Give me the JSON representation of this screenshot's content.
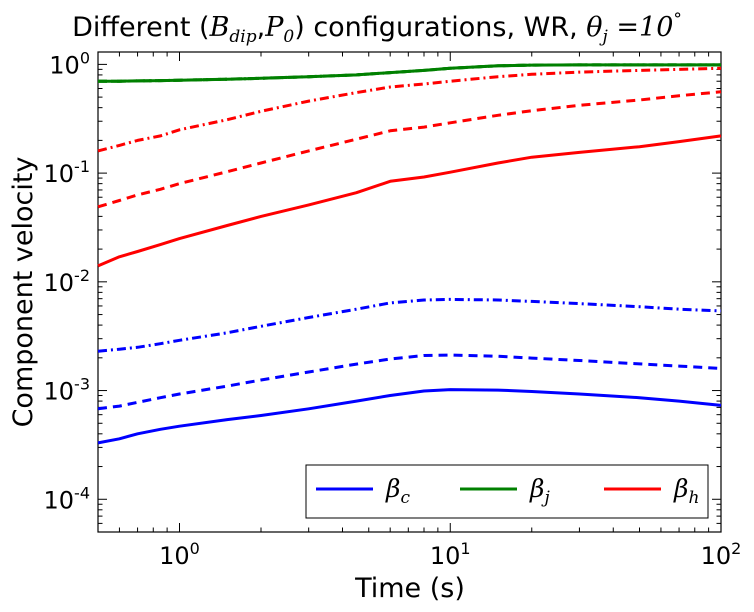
{
  "chart_data": {
    "type": "line",
    "title": {
      "prefix": "Different (",
      "b_sym": "B",
      "b_sub": "dip",
      "comma": ",",
      "p_sym": "P",
      "p_sub": "0",
      "suffix": ") configurations, WR, ",
      "theta": "θ",
      "theta_sub": "j",
      "eq": " =10",
      "deg": "°"
    },
    "xlabel": "Time (s)",
    "ylabel": "Component velocity",
    "xscale": "log",
    "yscale": "log",
    "xlim": [
      0.5,
      100
    ],
    "ylim": [
      5e-05,
      1.3
    ],
    "x_ticks": [
      {
        "value": 1,
        "base": "10",
        "exp": "0"
      },
      {
        "value": 10,
        "base": "10",
        "exp": "1"
      },
      {
        "value": 100,
        "base": "10",
        "exp": "2"
      }
    ],
    "y_ticks": [
      {
        "value": 0.0001,
        "base": "10",
        "exp": "-4"
      },
      {
        "value": 0.001,
        "base": "10",
        "exp": "-3"
      },
      {
        "value": 0.01,
        "base": "10",
        "exp": "-2"
      },
      {
        "value": 0.1,
        "base": "10",
        "exp": "-1"
      },
      {
        "value": 1,
        "base": "10",
        "exp": "0"
      }
    ],
    "x": [
      0.5,
      0.6,
      0.7,
      0.85,
      1,
      1.5,
      2,
      3,
      4.5,
      6,
      8,
      10,
      15,
      20,
      30,
      50,
      70,
      100
    ],
    "series": [
      {
        "name": "β_c solid",
        "group": "beta_c",
        "style": "solid",
        "color": "#0000ff",
        "values": [
          0.00033,
          0.00036,
          0.0004,
          0.00044,
          0.00047,
          0.00054,
          0.00059,
          0.00068,
          0.0008,
          0.0009,
          0.00099,
          0.00102,
          0.00101,
          0.00098,
          0.00093,
          0.00086,
          0.0008,
          0.00073
        ]
      },
      {
        "name": "β_c dashed",
        "group": "beta_c",
        "style": "dashed",
        "color": "#0000ff",
        "values": [
          0.00068,
          0.00072,
          0.00078,
          0.00086,
          0.00093,
          0.0011,
          0.00125,
          0.00148,
          0.00175,
          0.00195,
          0.0021,
          0.00212,
          0.00207,
          0.00199,
          0.00189,
          0.00176,
          0.00168,
          0.0016
        ]
      },
      {
        "name": "β_c dashdot",
        "group": "beta_c",
        "style": "dashdot",
        "color": "#0000ff",
        "values": [
          0.0023,
          0.0024,
          0.0025,
          0.0027,
          0.0029,
          0.0034,
          0.0039,
          0.0047,
          0.0056,
          0.0064,
          0.0068,
          0.0069,
          0.0068,
          0.0066,
          0.0063,
          0.0059,
          0.0056,
          0.0054
        ]
      },
      {
        "name": "β_j solid",
        "group": "beta_j",
        "style": "solid",
        "color": "#008000",
        "values": [
          0.7,
          0.7,
          0.705,
          0.71,
          0.715,
          0.73,
          0.745,
          0.77,
          0.8,
          0.84,
          0.88,
          0.92,
          0.97,
          0.985,
          0.99,
          0.99,
          0.99,
          0.99
        ]
      },
      {
        "name": "β_j dashed",
        "group": "beta_j",
        "style": "dashed",
        "color": "#008000",
        "values": [
          0.7,
          0.7,
          0.705,
          0.71,
          0.715,
          0.73,
          0.745,
          0.77,
          0.8,
          0.84,
          0.88,
          0.92,
          0.97,
          0.985,
          0.99,
          0.99,
          0.99,
          0.99
        ]
      },
      {
        "name": "β_j dashdot",
        "group": "beta_j",
        "style": "dashdot",
        "color": "#008000",
        "values": [
          0.7,
          0.7,
          0.705,
          0.71,
          0.715,
          0.73,
          0.745,
          0.77,
          0.8,
          0.84,
          0.88,
          0.92,
          0.97,
          0.985,
          0.99,
          0.99,
          0.99,
          0.99
        ]
      },
      {
        "name": "β_h solid",
        "group": "beta_h",
        "style": "solid",
        "color": "#ff0000",
        "values": [
          0.014,
          0.017,
          0.019,
          0.022,
          0.025,
          0.033,
          0.04,
          0.051,
          0.066,
          0.084,
          0.092,
          0.102,
          0.124,
          0.14,
          0.155,
          0.175,
          0.195,
          0.22
        ]
      },
      {
        "name": "β_h dashed",
        "group": "beta_h",
        "style": "dashed",
        "color": "#ff0000",
        "values": [
          0.049,
          0.056,
          0.063,
          0.071,
          0.08,
          0.103,
          0.124,
          0.16,
          0.205,
          0.245,
          0.265,
          0.29,
          0.34,
          0.375,
          0.42,
          0.47,
          0.515,
          0.56
        ]
      },
      {
        "name": "β_h dashdot",
        "group": "beta_h",
        "style": "dashdot",
        "color": "#ff0000",
        "values": [
          0.16,
          0.18,
          0.2,
          0.22,
          0.25,
          0.31,
          0.37,
          0.46,
          0.55,
          0.62,
          0.66,
          0.7,
          0.77,
          0.81,
          0.85,
          0.88,
          0.9,
          0.92
        ]
      }
    ],
    "legend": {
      "position": "lower-right",
      "columns": 3,
      "entries": [
        {
          "symbol": "β",
          "sub": "c",
          "color": "#0000ff"
        },
        {
          "symbol": "β",
          "sub": "j",
          "color": "#008000"
        },
        {
          "symbol": "β",
          "sub": "h",
          "color": "#ff0000"
        }
      ]
    }
  }
}
